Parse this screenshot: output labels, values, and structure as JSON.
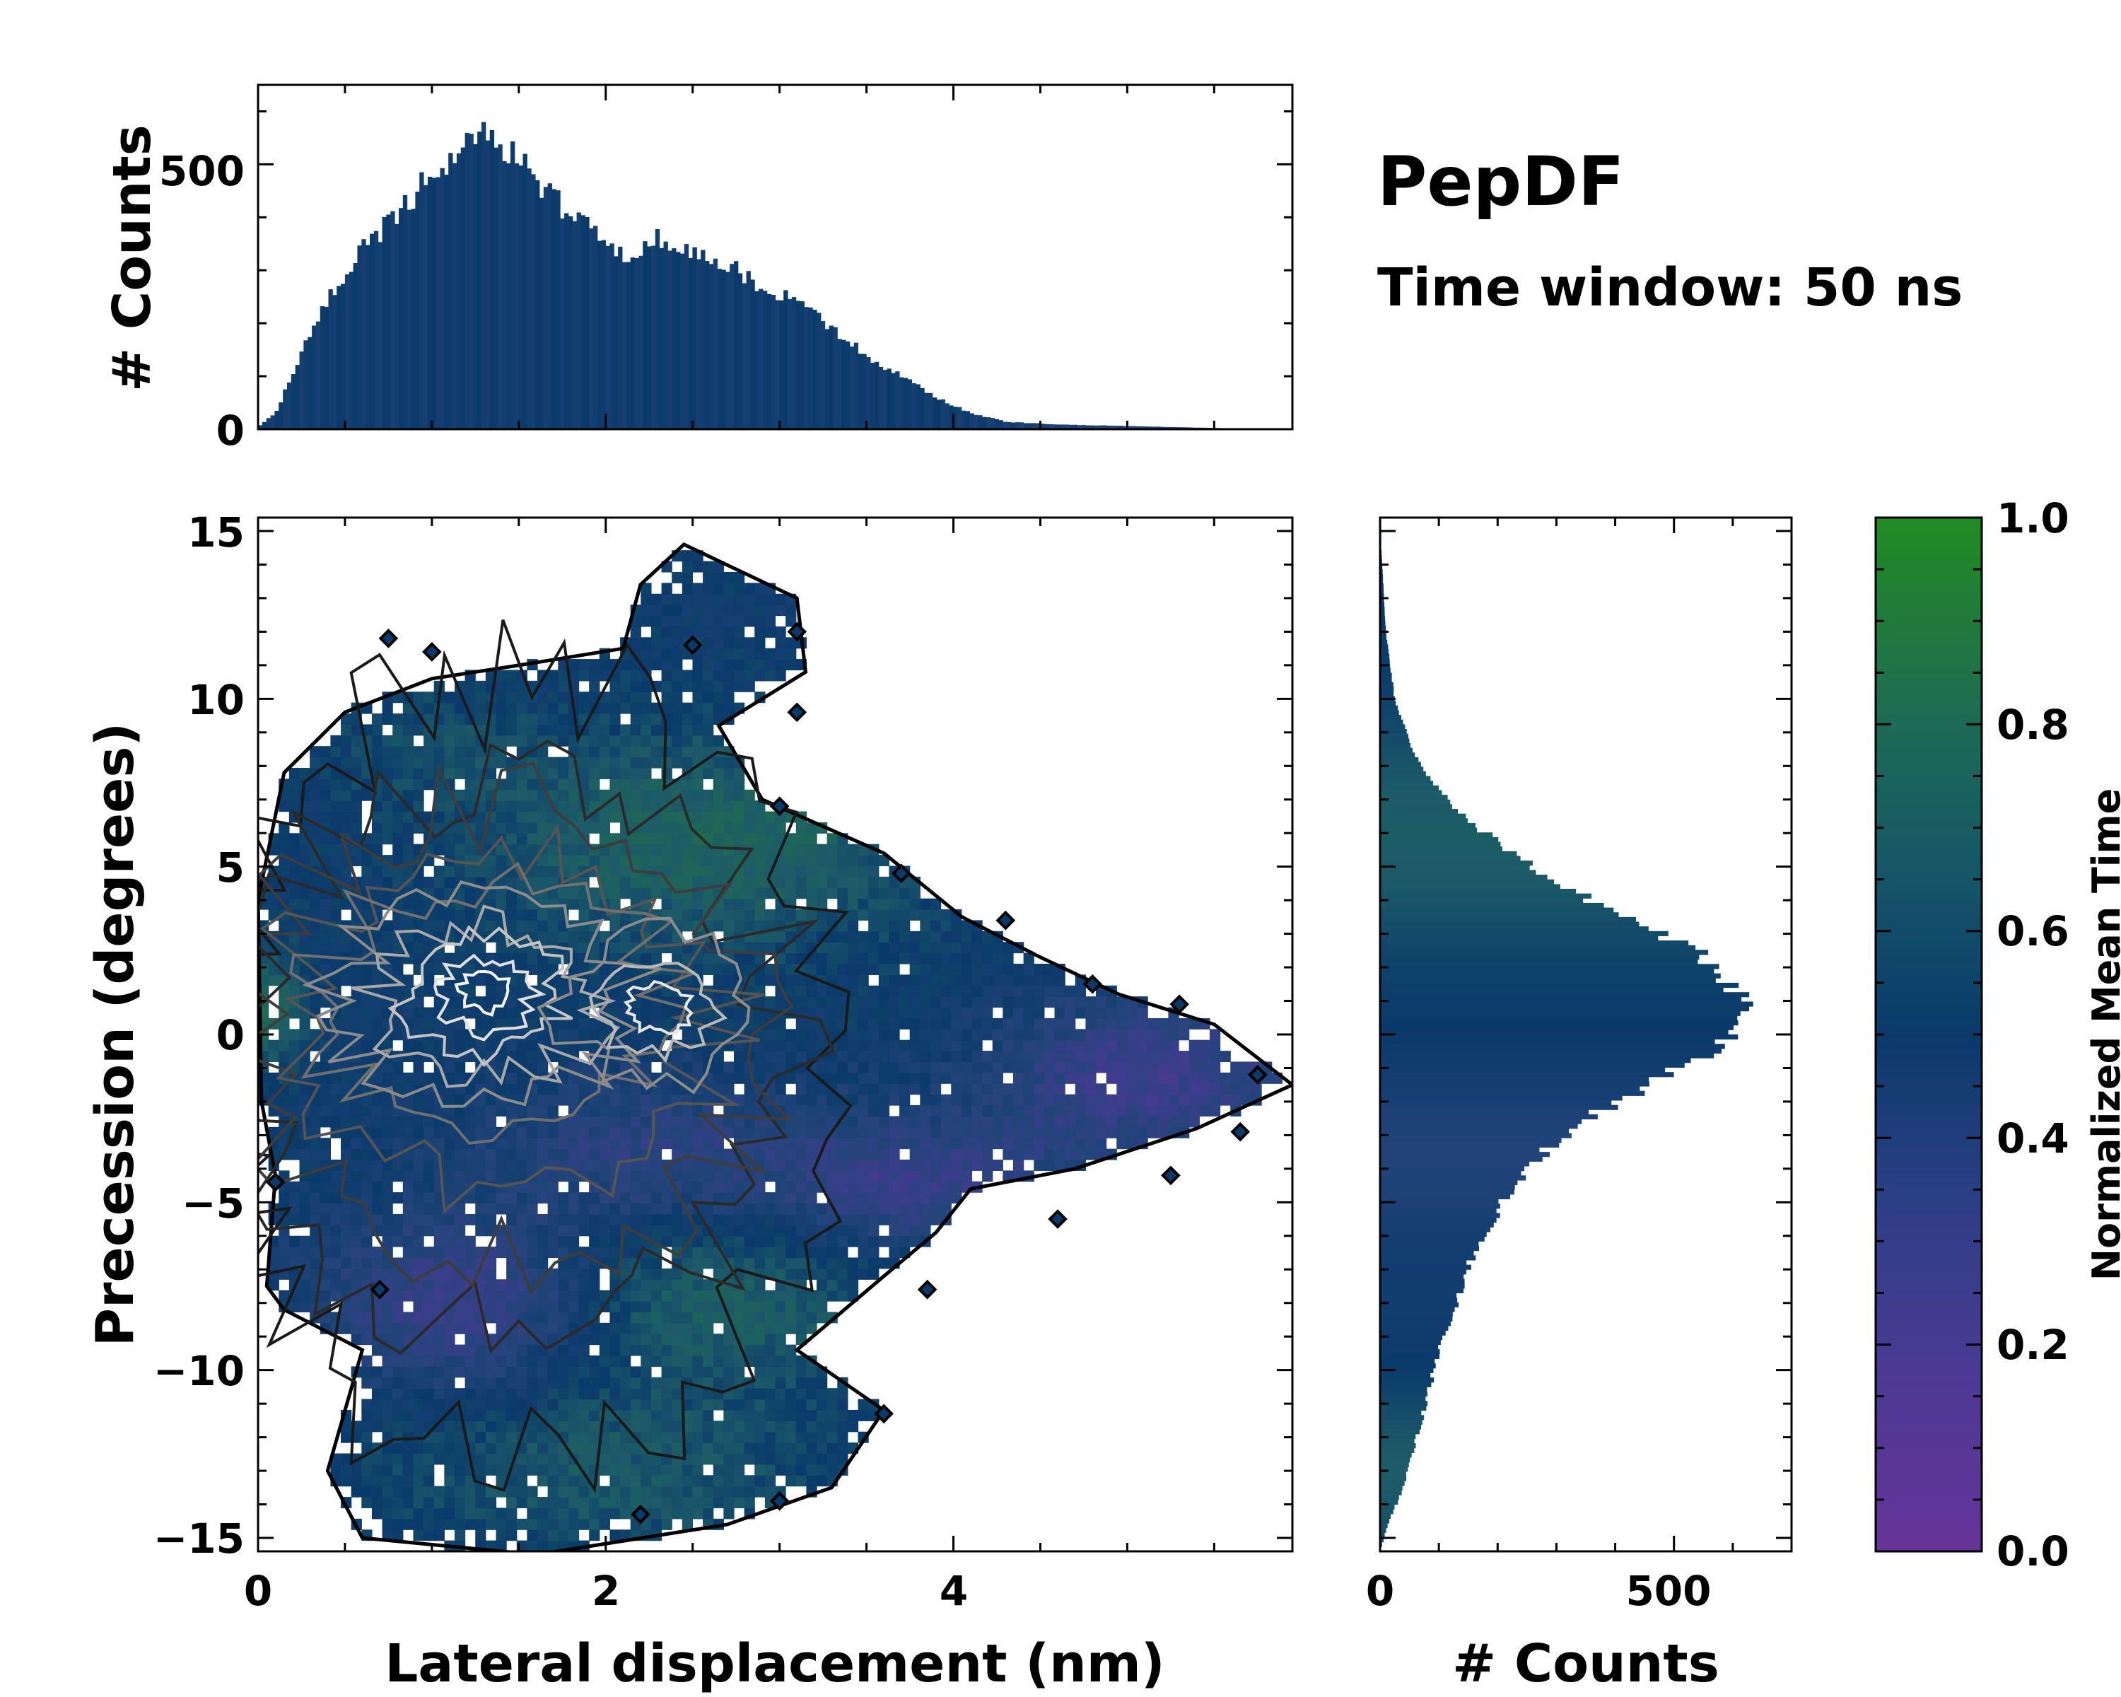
{
  "chart_data": {
    "type": "heatmap",
    "title": "PepDF",
    "subtitle": "Time window: 50 ns",
    "main_panel": {
      "xlabel": "Lateral displacement (nm)",
      "ylabel": "Precession (degrees)",
      "xlim": [
        0,
        5.95
      ],
      "ylim": [
        -15.4,
        15.4
      ],
      "xticks": [
        0,
        2,
        4
      ],
      "xtick_labels": [
        "0",
        "2",
        "4"
      ],
      "yticks": [
        -15,
        -10,
        -5,
        0,
        5,
        10,
        15
      ],
      "ytick_labels": [
        "−15",
        "−10",
        "−5",
        "0",
        "5",
        "10",
        "15"
      ],
      "bins_x": 100,
      "bins_y": 95,
      "color_encodes": "normalized mean time (0 = purple, 1 = green)",
      "contours": "count-density contour lines; outer boundary black, inner levels grey to white near the density peak around (1.3 nm, 1 degree)",
      "density_peak": {
        "x": 1.3,
        "y": 1.0
      },
      "outline_nm_deg": [
        [
          0.05,
          -7.5
        ],
        [
          0.1,
          -4.2
        ],
        [
          0.02,
          -2.0
        ],
        [
          0.0,
          4.0
        ],
        [
          0.15,
          7.8
        ],
        [
          0.5,
          9.6
        ],
        [
          1.0,
          10.6
        ],
        [
          1.5,
          11.0
        ],
        [
          2.1,
          11.5
        ],
        [
          2.2,
          13.4
        ],
        [
          2.45,
          14.6
        ],
        [
          3.1,
          13.0
        ],
        [
          3.15,
          10.8
        ],
        [
          2.65,
          9.2
        ],
        [
          2.9,
          7.0
        ],
        [
          3.6,
          5.4
        ],
        [
          4.05,
          3.5
        ],
        [
          4.5,
          2.3
        ],
        [
          4.95,
          1.2
        ],
        [
          5.5,
          0.3
        ],
        [
          5.95,
          -1.5
        ],
        [
          5.4,
          -2.8
        ],
        [
          4.7,
          -4.0
        ],
        [
          4.1,
          -4.6
        ],
        [
          3.9,
          -5.9
        ],
        [
          3.6,
          -7.2
        ],
        [
          3.1,
          -9.4
        ],
        [
          3.6,
          -11.2
        ],
        [
          3.3,
          -13.5
        ],
        [
          2.7,
          -14.6
        ],
        [
          1.6,
          -15.5
        ],
        [
          0.6,
          -15.0
        ],
        [
          0.4,
          -13.0
        ],
        [
          0.6,
          -9.4
        ],
        [
          0.15,
          -8.2
        ]
      ]
    },
    "top_histogram": {
      "ylabel": "# Counts",
      "ylim": [
        0,
        650
      ],
      "yticks": [
        0,
        500
      ],
      "ytick_labels": [
        "0",
        "500"
      ],
      "x_range": [
        0,
        5.95
      ],
      "key_points_nm_counts": [
        [
          0.0,
          5
        ],
        [
          0.1,
          30
        ],
        [
          0.3,
          180
        ],
        [
          0.45,
          270
        ],
        [
          0.6,
          340
        ],
        [
          0.8,
          410
        ],
        [
          1.0,
          480
        ],
        [
          1.2,
          530
        ],
        [
          1.35,
          570
        ],
        [
          1.45,
          520
        ],
        [
          1.6,
          470
        ],
        [
          1.8,
          400
        ],
        [
          1.95,
          370
        ],
        [
          2.1,
          330
        ],
        [
          2.3,
          360
        ],
        [
          2.5,
          330
        ],
        [
          2.7,
          310
        ],
        [
          2.9,
          270
        ],
        [
          3.1,
          240
        ],
        [
          3.3,
          190
        ],
        [
          3.5,
          140
        ],
        [
          3.7,
          100
        ],
        [
          3.9,
          60
        ],
        [
          4.1,
          30
        ],
        [
          4.3,
          14
        ],
        [
          4.6,
          9
        ],
        [
          5.0,
          6
        ],
        [
          5.4,
          3
        ],
        [
          5.7,
          1
        ],
        [
          5.95,
          0
        ]
      ]
    },
    "right_histogram": {
      "xlabel": "# Counts",
      "xlim": [
        0,
        700
      ],
      "xticks": [
        0,
        500
      ],
      "xtick_labels": [
        "0",
        "500"
      ],
      "y_range": [
        -15.4,
        15.4
      ],
      "key_points_deg_counts": [
        [
          14.5,
          2
        ],
        [
          12,
          10
        ],
        [
          10,
          25
        ],
        [
          8.5,
          55
        ],
        [
          7.5,
          90
        ],
        [
          6.5,
          140
        ],
        [
          5.5,
          220
        ],
        [
          4.5,
          300
        ],
        [
          3.5,
          420
        ],
        [
          2.8,
          500
        ],
        [
          2.0,
          580
        ],
        [
          1.0,
          625
        ],
        [
          0.3,
          610
        ],
        [
          -0.5,
          560
        ],
        [
          -1.5,
          460
        ],
        [
          -2.5,
          350
        ],
        [
          -3.5,
          280
        ],
        [
          -4.5,
          230
        ],
        [
          -5.5,
          190
        ],
        [
          -6.5,
          160
        ],
        [
          -7.5,
          140
        ],
        [
          -8.5,
          120
        ],
        [
          -9.5,
          100
        ],
        [
          -10.5,
          85
        ],
        [
          -11.5,
          70
        ],
        [
          -12.5,
          55
        ],
        [
          -13.5,
          40
        ],
        [
          -14.5,
          15
        ],
        [
          -15.4,
          0
        ]
      ]
    },
    "colorbar": {
      "label": "Normalized Mean Time",
      "range": [
        0.0,
        1.0
      ],
      "ticks": [
        0.0,
        0.2,
        0.4,
        0.6,
        0.8,
        1.0
      ],
      "tick_labels": [
        "0.0",
        "0.2",
        "0.4",
        "0.6",
        "0.8",
        "1.0"
      ],
      "colors": [
        "#663399",
        "#3d3d8c",
        "#23447a",
        "#0a3a6a",
        "#1c5a68",
        "#1f6b50",
        "#228b22"
      ]
    }
  }
}
